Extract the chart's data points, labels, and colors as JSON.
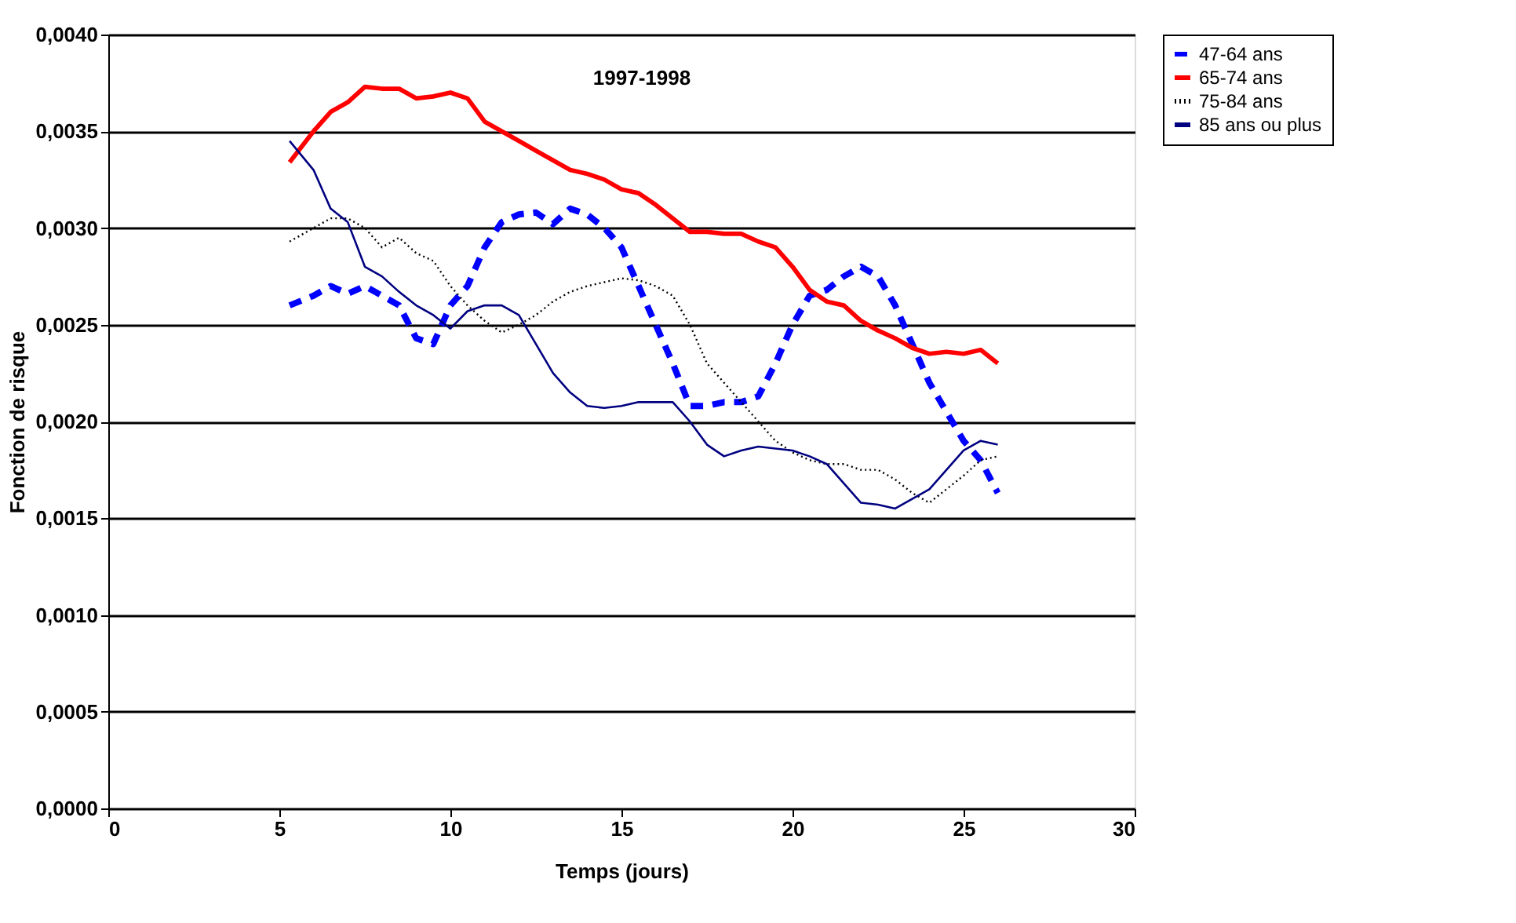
{
  "chart_data": {
    "type": "line",
    "xlabel": "Temps (jours)",
    "ylabel": "Fonction de risque",
    "annotations": [
      "1997-1998"
    ],
    "x": [
      5.3,
      6,
      6.5,
      7,
      7.5,
      8,
      8.5,
      9,
      9.5,
      10,
      10.5,
      11,
      11.5,
      12,
      12.5,
      13,
      13.5,
      14,
      14.5,
      15,
      15.5,
      16,
      16.5,
      17,
      17.5,
      18,
      18.5,
      19,
      19.5,
      20,
      20.5,
      21,
      21.5,
      22,
      22.5,
      23,
      23.5,
      24,
      24.5,
      25,
      25.5,
      26
    ],
    "series": [
      {
        "name": "47-64 ans",
        "color": "#0000ff",
        "line_style": "dashed",
        "values": [
          0.0026,
          0.00265,
          0.0027,
          0.00266,
          0.0027,
          0.00265,
          0.0026,
          0.00243,
          0.0024,
          0.0026,
          0.0027,
          0.0029,
          0.00303,
          0.00307,
          0.00308,
          0.00302,
          0.0031,
          0.00307,
          0.003,
          0.0029,
          0.0027,
          0.0025,
          0.0023,
          0.00208,
          0.00208,
          0.0021,
          0.0021,
          0.00213,
          0.0023,
          0.0025,
          0.00265,
          0.00268,
          0.00275,
          0.0028,
          0.00275,
          0.0026,
          0.0024,
          0.0022,
          0.00205,
          0.0019,
          0.0018,
          0.00163
        ]
      },
      {
        "name": "65-74 ans",
        "color": "#ff0000",
        "line_style": "solid",
        "values": [
          0.00334,
          0.0035,
          0.0036,
          0.00365,
          0.00373,
          0.00372,
          0.00372,
          0.00367,
          0.00368,
          0.0037,
          0.00367,
          0.00355,
          0.0035,
          0.00345,
          0.0034,
          0.00335,
          0.0033,
          0.00328,
          0.00325,
          0.0032,
          0.00318,
          0.00312,
          0.00305,
          0.00298,
          0.00298,
          0.00297,
          0.00297,
          0.00293,
          0.0029,
          0.0028,
          0.00268,
          0.00262,
          0.0026,
          0.00252,
          0.00247,
          0.00243,
          0.00238,
          0.00235,
          0.00236,
          0.00235,
          0.00237,
          0.0023
        ]
      },
      {
        "name": "75-84 ans",
        "color": "#000000",
        "line_style": "dotted",
        "values": [
          0.00293,
          0.003,
          0.00305,
          0.00305,
          0.003,
          0.0029,
          0.00295,
          0.00287,
          0.00283,
          0.0027,
          0.0026,
          0.00252,
          0.00246,
          0.0025,
          0.00255,
          0.00262,
          0.00267,
          0.0027,
          0.00272,
          0.00274,
          0.00273,
          0.0027,
          0.00265,
          0.0025,
          0.0023,
          0.0022,
          0.0021,
          0.002,
          0.0019,
          0.00184,
          0.0018,
          0.00178,
          0.00178,
          0.00175,
          0.00175,
          0.0017,
          0.00163,
          0.00158,
          0.00165,
          0.00172,
          0.0018,
          0.00182
        ]
      },
      {
        "name": "85 ans ou plus",
        "color": "#000080",
        "line_style": "solid",
        "values": [
          0.00345,
          0.0033,
          0.0031,
          0.00303,
          0.0028,
          0.00275,
          0.00267,
          0.0026,
          0.00255,
          0.00248,
          0.00257,
          0.0026,
          0.0026,
          0.00255,
          0.0024,
          0.00225,
          0.00215,
          0.00208,
          0.00207,
          0.00208,
          0.0021,
          0.0021,
          0.0021,
          0.002,
          0.00188,
          0.00182,
          0.00185,
          0.00187,
          0.00186,
          0.00185,
          0.00182,
          0.00178,
          0.00168,
          0.00158,
          0.00157,
          0.00155,
          0.0016,
          0.00165,
          0.00175,
          0.00185,
          0.0019,
          0.00188
        ]
      }
    ],
    "xlim": [
      0,
      30
    ],
    "xticks": [
      0,
      5,
      10,
      15,
      20,
      25,
      30
    ],
    "ylim": [
      0,
      0.004
    ],
    "yticks": [
      {
        "value": 0,
        "label": "0,0000"
      },
      {
        "value": 0.0005,
        "label": "0,0005"
      },
      {
        "value": 0.001,
        "label": "0,0010"
      },
      {
        "value": 0.0015,
        "label": "0,0015"
      },
      {
        "value": 0.002,
        "label": "0,0020"
      },
      {
        "value": 0.0025,
        "label": "0,0025"
      },
      {
        "value": 0.003,
        "label": "0,0030"
      },
      {
        "value": 0.0035,
        "label": "0,0035"
      },
      {
        "value": 0.004,
        "label": "0,0040"
      }
    ],
    "grid": "y",
    "legend": "right",
    "marker": "none"
  }
}
